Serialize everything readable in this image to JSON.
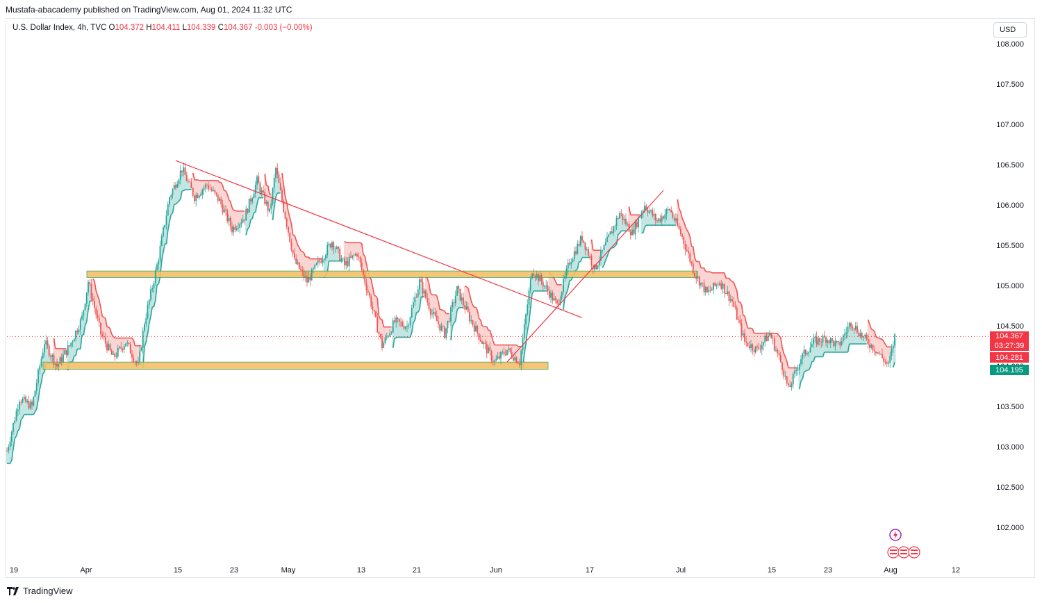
{
  "header": {
    "published_line": "Mustafa-abacademy published on TradingView.com, Aug 01, 2024 11:32 UTC"
  },
  "legend": {
    "symbol": "U.S. Dollar Index, 4h, TVC",
    "o_label": "O",
    "o_value": "104.372",
    "h_label": "H",
    "h_value": "104.411",
    "l_label": "L",
    "l_value": "104.339",
    "c_label": "C",
    "c_value": "104.367",
    "change": "-0.003 (−0.00%)"
  },
  "currency_button": "USD",
  "footer": {
    "brand": "TradingView"
  },
  "colors": {
    "up": "#26a69a",
    "down": "#ef5350",
    "zone": "#f5c06a",
    "trendline": "#f23645",
    "price_badge": "#f23645",
    "level_badge_green": "#089981"
  },
  "badges": {
    "last_price": "104.367",
    "countdown": "03:27:39",
    "level_red": "104.281",
    "level_green": "104.195"
  },
  "chart_data": {
    "type": "candlestick",
    "title": "U.S. Dollar Index, 4h, TVC",
    "timeframe": "4h",
    "ylim": [
      101.65,
      108.1
    ],
    "y_ticks": [
      "108.000",
      "107.500",
      "107.000",
      "106.500",
      "106.000",
      "105.500",
      "105.000",
      "104.500",
      "104.000",
      "103.500",
      "103.000",
      "102.500",
      "102.000"
    ],
    "x_ticks": [
      "19",
      "Apr",
      "15",
      "23",
      "May",
      "13",
      "21",
      "Jun",
      "17",
      "Jul",
      "15",
      "23",
      "Aug",
      "12"
    ],
    "last_price": 104.367,
    "price_path": [
      [
        0,
        102.95
      ],
      [
        2,
        103.6
      ],
      [
        4,
        103.5
      ],
      [
        6,
        104.3
      ],
      [
        8,
        104.0
      ],
      [
        10,
        104.25
      ],
      [
        12,
        104.6
      ],
      [
        13,
        105.05
      ],
      [
        15,
        104.4
      ],
      [
        17,
        104.1
      ],
      [
        19,
        104.3
      ],
      [
        21,
        104.0
      ],
      [
        22,
        104.55
      ],
      [
        24,
        105.25
      ],
      [
        26,
        106.1
      ],
      [
        28,
        106.45
      ],
      [
        30,
        106.1
      ],
      [
        32,
        106.25
      ],
      [
        34,
        106.05
      ],
      [
        36,
        105.7
      ],
      [
        38,
        105.85
      ],
      [
        40,
        106.3
      ],
      [
        42,
        105.9
      ],
      [
        43,
        106.45
      ],
      [
        44,
        106.05
      ],
      [
        46,
        105.3
      ],
      [
        48,
        105.05
      ],
      [
        50,
        105.3
      ],
      [
        52,
        105.55
      ],
      [
        54,
        105.25
      ],
      [
        56,
        105.4
      ],
      [
        58,
        104.85
      ],
      [
        60,
        104.25
      ],
      [
        62,
        104.55
      ],
      [
        64,
        104.5
      ],
      [
        66,
        105.05
      ],
      [
        68,
        104.65
      ],
      [
        70,
        104.4
      ],
      [
        72,
        104.95
      ],
      [
        74,
        104.6
      ],
      [
        76,
        104.3
      ],
      [
        78,
        104.05
      ],
      [
        80,
        104.2
      ],
      [
        82,
        104.05
      ],
      [
        84,
        105.2
      ],
      [
        86,
        105.0
      ],
      [
        88,
        104.75
      ],
      [
        90,
        105.3
      ],
      [
        92,
        105.6
      ],
      [
        94,
        105.2
      ],
      [
        96,
        105.55
      ],
      [
        98,
        105.9
      ],
      [
        100,
        105.65
      ],
      [
        102,
        106.0
      ],
      [
        104,
        105.8
      ],
      [
        106,
        105.95
      ],
      [
        108,
        105.6
      ],
      [
        110,
        105.15
      ],
      [
        112,
        104.9
      ],
      [
        114,
        105.05
      ],
      [
        116,
        104.8
      ],
      [
        118,
        104.3
      ],
      [
        120,
        104.2
      ],
      [
        122,
        104.4
      ],
      [
        124,
        104.0
      ],
      [
        125,
        103.7
      ],
      [
        127,
        104.1
      ],
      [
        129,
        104.3
      ],
      [
        131,
        104.35
      ],
      [
        133,
        104.25
      ],
      [
        135,
        104.55
      ],
      [
        137,
        104.35
      ],
      [
        139,
        104.2
      ],
      [
        141,
        104.0
      ],
      [
        142,
        104.37
      ]
    ],
    "zones": [
      {
        "label": "resistance",
        "top": 105.18,
        "bottom": 105.1,
        "from_x_tick": "Apr",
        "to_x_tick": "Jul"
      },
      {
        "label": "support",
        "top": 104.05,
        "bottom": 103.96,
        "from_x_tick": "19",
        "to_x_tick": "Jun"
      }
    ],
    "trendlines": [
      {
        "label": "descending",
        "p1": [
          27,
          106.55
        ],
        "p2": [
          92,
          104.6
        ]
      },
      {
        "label": "ascending",
        "p1": [
          80,
          104.05
        ],
        "p2": [
          105,
          106.18
        ]
      }
    ],
    "grid": false
  }
}
